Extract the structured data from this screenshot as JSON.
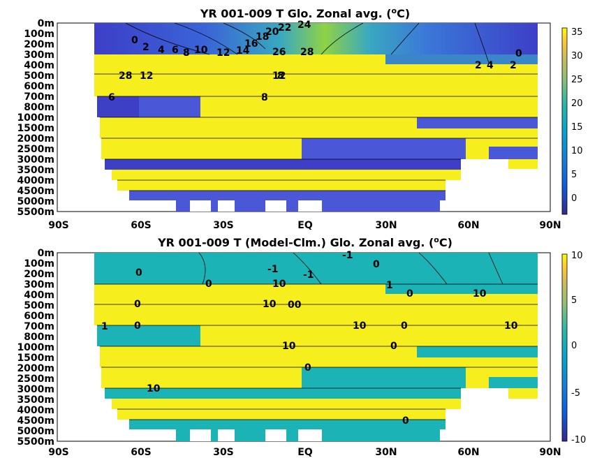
{
  "colors": {
    "yellow": "#f7ef1d",
    "cold": "#4a58d8",
    "cold_deep": "#3d3fc7",
    "mid_blue": "#3a86c9",
    "teal": "#21b8b0",
    "cyan": "#2ec1a5",
    "green": "#6ccd5a",
    "light_green": "#9fd53d",
    "anom_bg": "#1cb3b7"
  },
  "chart_data": [
    {
      "type": "heatmap",
      "title": "YR 001-009 T Glo. Zonal avg. (oC)",
      "title_prefix": "YR 001-009 T Glo. Zonal avg. (",
      "title_sup": "o",
      "title_suffix": "C)",
      "xticks": [
        "90S",
        "60S",
        "30S",
        "EQ",
        "30N",
        "60N",
        "90N"
      ],
      "yticks": [
        "0m",
        "100m",
        "200m",
        "300m",
        "400m",
        "500m",
        "600m",
        "700m",
        "800m",
        "1000m",
        "1500m",
        "2000m",
        "2500m",
        "3000m",
        "3500m",
        "4000m",
        "4500m",
        "5000m",
        "5500m"
      ],
      "colorbar_ticks": [
        "35",
        "30",
        "25",
        "20",
        "15",
        "10",
        "5",
        "0"
      ],
      "clim": [
        -4,
        36
      ],
      "colormap": "parula",
      "contour_labels": [
        "0",
        "2",
        "4",
        "6",
        "8",
        "10",
        "12",
        "14",
        "16",
        "18",
        "20",
        "22",
        "24",
        "26",
        "28",
        "12",
        "28",
        "12",
        "8",
        "2",
        "4",
        "2",
        "0",
        "6",
        "8"
      ]
    },
    {
      "type": "heatmap",
      "title": "YR 001-009 T (Model-Clm.) Glo. Zonal avg. (oC)",
      "title_prefix": "YR 001-009 T (Model-Clm.) Glo. Zonal avg. (",
      "title_sup": "o",
      "title_suffix": "C)",
      "xticks": [
        "90S",
        "60S",
        "30S",
        "EQ",
        "30N",
        "60N",
        "90N"
      ],
      "yticks": [
        "0m",
        "100m",
        "200m",
        "300m",
        "400m",
        "500m",
        "600m",
        "700m",
        "800m",
        "1000m",
        "1500m",
        "2000m",
        "2500m",
        "3000m",
        "3500m",
        "4000m",
        "4500m",
        "5000m",
        "5500m"
      ],
      "colorbar_ticks": [
        "10",
        "5",
        "0",
        "-5",
        "-10"
      ],
      "clim": [
        -10,
        10
      ],
      "colormap": "parula",
      "contour_labels": [
        "-1",
        "0",
        "-1",
        "-1",
        "0",
        "0",
        "10",
        "1",
        "0",
        "10",
        "0",
        "00",
        "10",
        "0",
        "10",
        "0",
        "10",
        "1",
        "0",
        "10",
        "0",
        "10",
        "0"
      ]
    }
  ]
}
